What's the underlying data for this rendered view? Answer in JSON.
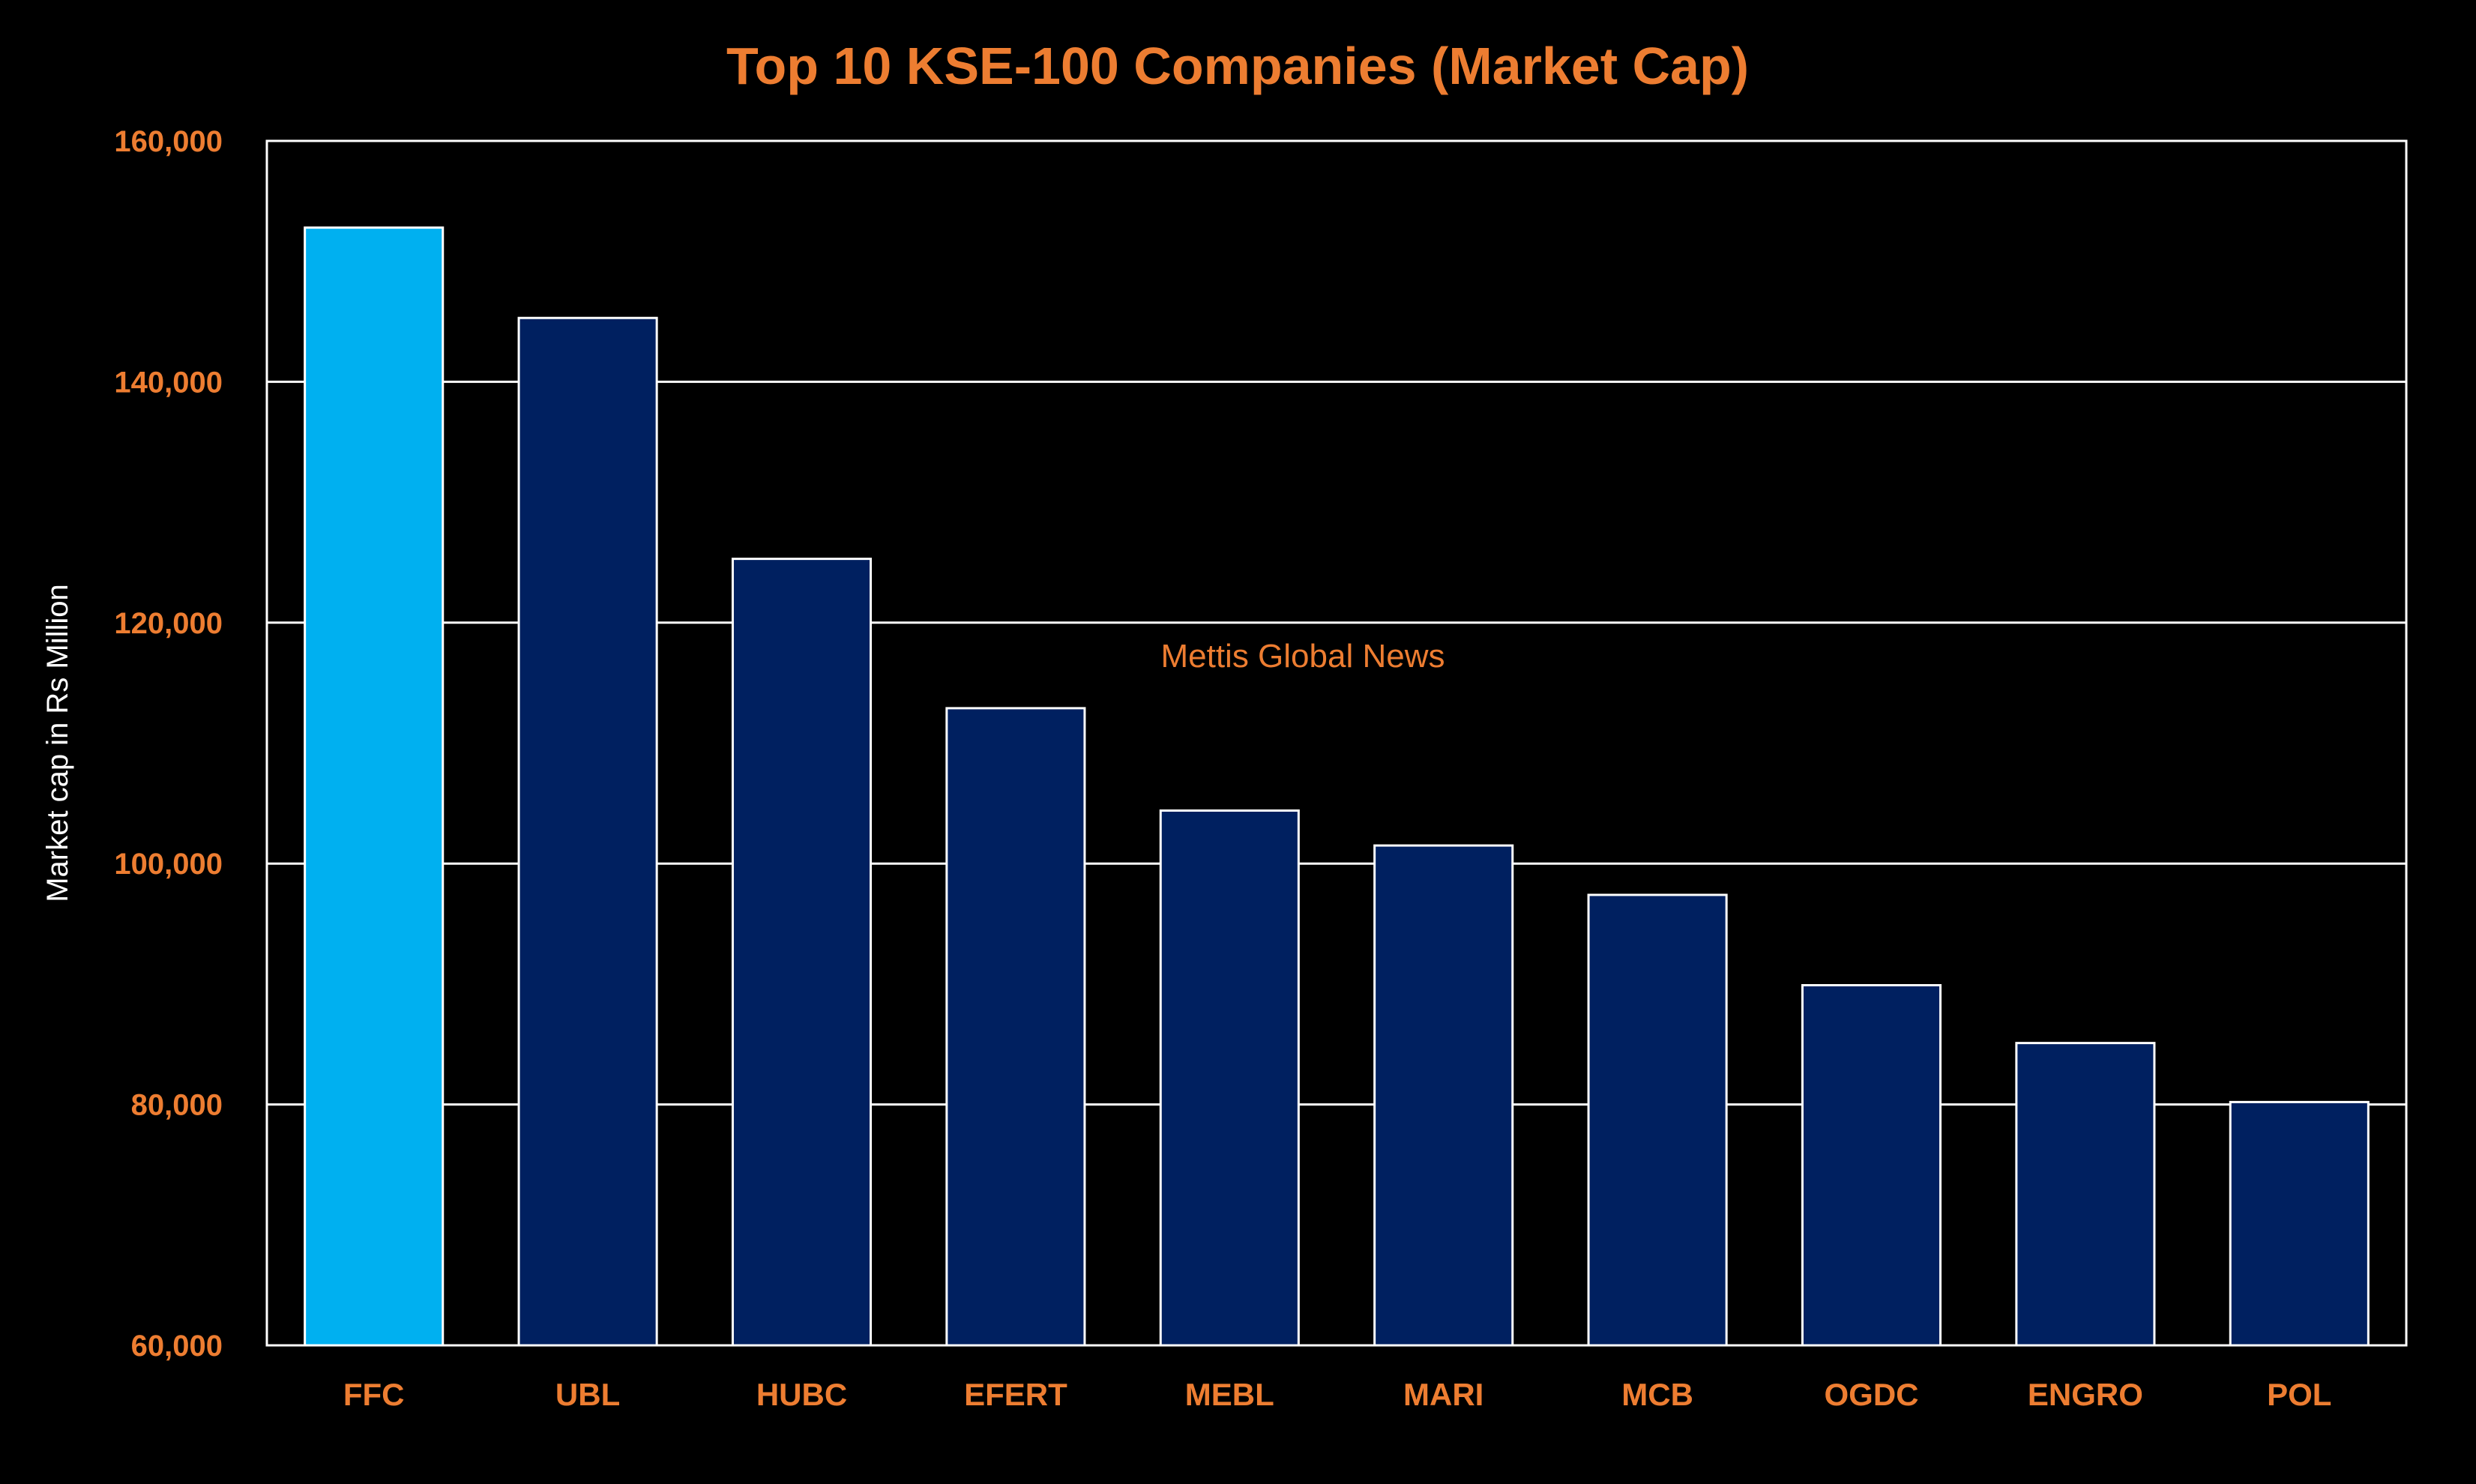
{
  "chart_data": {
    "type": "bar",
    "title": "Top 10 KSE-100 Companies (Market Cap)",
    "xlabel": "",
    "ylabel": "Market cap in Rs Million",
    "ylim": [
      60000,
      160000
    ],
    "yticks": [
      60000,
      80000,
      100000,
      120000,
      140000,
      160000
    ],
    "ytick_labels": [
      "60,000",
      "80,000",
      "100,000",
      "120,000",
      "140,000",
      "160,000"
    ],
    "categories": [
      "FFC",
      "UBL",
      "HUBC",
      "EFERT",
      "MEBL",
      "MARI",
      "MCB",
      "OGDC",
      "ENGRO",
      "POL"
    ],
    "values": [
      152800,
      145300,
      125300,
      112900,
      104400,
      101500,
      97400,
      89900,
      85100,
      80200
    ],
    "highlight_index": 0,
    "grid": "horizontal",
    "legend": "none",
    "annotation": "Mettis Global News",
    "colors": {
      "bar": "#002060",
      "highlight": "#00B0F0",
      "bar_edge": "#FFFFFF",
      "text_accent": "#ED7D31",
      "axis": "#FFFFFF",
      "background": "#000000"
    }
  }
}
